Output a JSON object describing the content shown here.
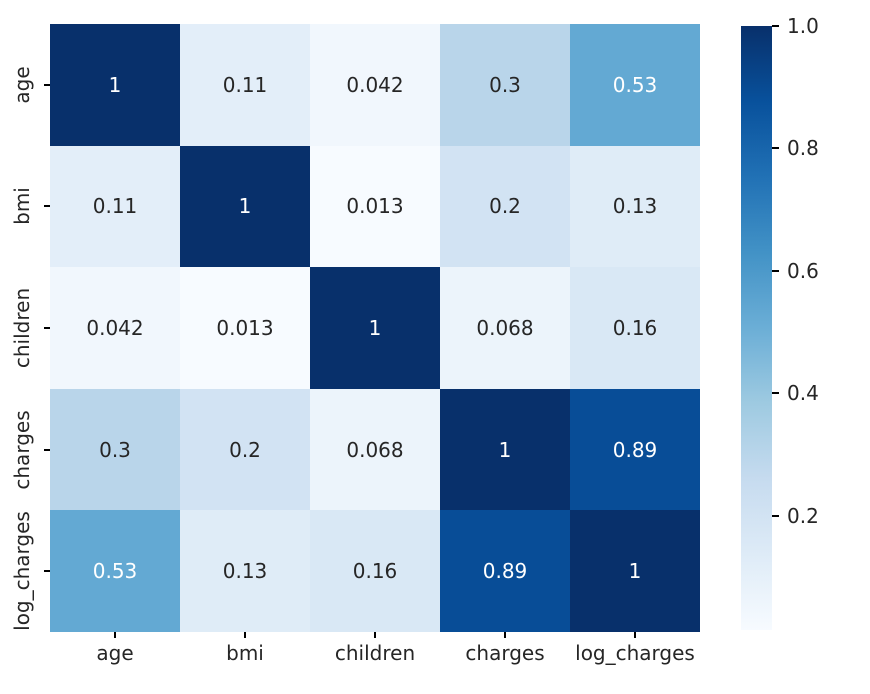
{
  "chart_data": {
    "type": "heatmap",
    "title": "",
    "xlabel": "",
    "ylabel": "",
    "categories": [
      "age",
      "bmi",
      "children",
      "charges",
      "log_charges"
    ],
    "x_tick_labels": [
      "age",
      "bmi",
      "children",
      "charges",
      "log_charges"
    ],
    "y_tick_labels": [
      "age",
      "bmi",
      "children",
      "charges",
      "log_charges"
    ],
    "matrix": [
      [
        1,
        0.11,
        0.042,
        0.3,
        0.53
      ],
      [
        0.11,
        1,
        0.013,
        0.2,
        0.13
      ],
      [
        0.042,
        0.013,
        1,
        0.068,
        0.16
      ],
      [
        0.3,
        0.2,
        0.068,
        1,
        0.89
      ],
      [
        0.53,
        0.13,
        0.16,
        0.89,
        1
      ]
    ],
    "cell_labels": [
      [
        "1",
        "0.11",
        "0.042",
        "0.3",
        "0.53"
      ],
      [
        "0.11",
        "1",
        "0.013",
        "0.2",
        "0.13"
      ],
      [
        "0.042",
        "0.013",
        "1",
        "0.068",
        "0.16"
      ],
      [
        "0.3",
        "0.2",
        "0.068",
        "1",
        "0.89"
      ],
      [
        "0.53",
        "0.13",
        "0.16",
        "0.89",
        "1"
      ]
    ],
    "colormap": "Blues",
    "vmin": 0.013,
    "vmax": 1.0,
    "grid": false,
    "legend": null,
    "colorbar": {
      "position": "right",
      "tick_labels": [
        "1.0",
        "0.8",
        "0.6",
        "0.4",
        "0.2"
      ],
      "tick_values": [
        1.0,
        0.8,
        0.6,
        0.4,
        0.2
      ]
    },
    "colors": {
      "background": "#ffffff",
      "annotation_dark": "#262626",
      "annotation_light": "#ffffff",
      "tick_mark": "#000000",
      "cmap_low": "#f7fbff",
      "cmap_high": "#08306b"
    }
  }
}
